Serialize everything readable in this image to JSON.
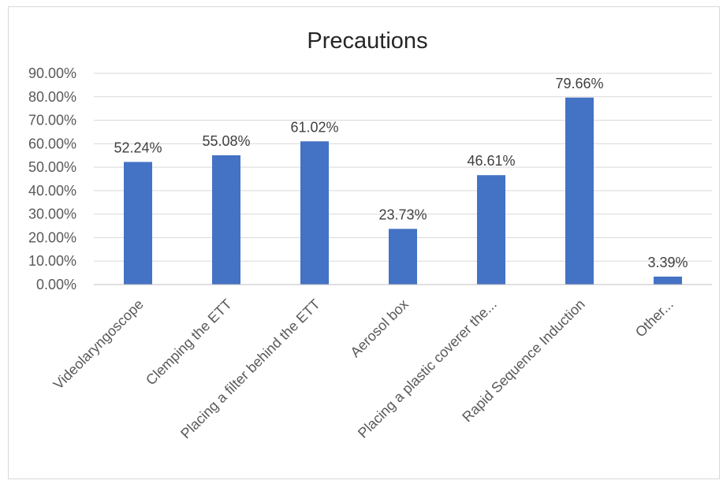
{
  "chart_data": {
    "type": "bar",
    "title": "Precautions",
    "xlabel": "",
    "ylabel": "",
    "categories": [
      "Videolaryngoscope",
      "Clemping the ETT",
      "Placing a filter behind the ETT",
      "Aerosol box",
      "Placing a plastic coverer the...",
      "Rapid Sequence Induction",
      "Other..."
    ],
    "values": [
      52.24,
      55.08,
      61.02,
      23.73,
      46.61,
      79.66,
      3.39
    ],
    "data_labels": [
      "52.24%",
      "55.08%",
      "61.02%",
      "23.73%",
      "46.61%",
      "79.66%",
      "3.39%"
    ],
    "ylim": [
      0,
      90
    ],
    "yticks": [
      0,
      10,
      20,
      30,
      40,
      50,
      60,
      70,
      80,
      90
    ],
    "ytick_labels": [
      "0.00%",
      "10.00%",
      "20.00%",
      "30.00%",
      "40.00%",
      "50.00%",
      "60.00%",
      "70.00%",
      "80.00%",
      "90.00%"
    ],
    "grid": true,
    "legend": "none",
    "colors": {
      "bar": "#4472c4",
      "grid": "#d9d9d9",
      "axis": "#bfbfbf"
    }
  }
}
